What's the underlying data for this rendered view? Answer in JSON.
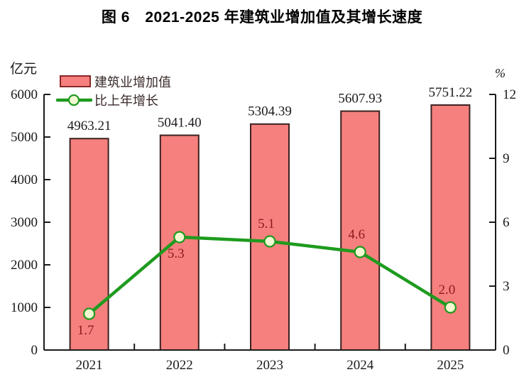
{
  "chart_data": {
    "type": "bar+line",
    "title": "图 6　2021-2025 年建筑业增加值及其增长速度",
    "categories": [
      "2021",
      "2022",
      "2023",
      "2024",
      "2025"
    ],
    "series": [
      {
        "name": "建筑业增加值",
        "type": "bar",
        "axis": "left",
        "unit": "亿元",
        "values": [
          4963.21,
          5041.4,
          5304.39,
          5607.93,
          5751.22
        ],
        "values_text": [
          "4963.21",
          "5041.40",
          "5304.39",
          "5607.93",
          "5751.22"
        ],
        "fill_color": "#F5807E",
        "border_color": "#3B2121",
        "label_color": "#1a1a1a"
      },
      {
        "name": "比上年增长",
        "type": "line",
        "axis": "right",
        "unit": "%",
        "values": [
          1.7,
          5.3,
          5.1,
          4.6,
          2.0
        ],
        "values_text": [
          "1.7",
          "5.3",
          "5.1",
          "4.6",
          "2.0"
        ],
        "label_positions": [
          "below",
          "below",
          "above",
          "above",
          "above"
        ],
        "line_color": "#1E9B1E",
        "marker_fill": "#F4F8D2",
        "label_color": "#8B1C1C"
      }
    ],
    "left_axis": {
      "unit_label": "亿元",
      "min": 0,
      "max": 6000,
      "step": 1000,
      "ticks": [
        "0",
        "1000",
        "2000",
        "3000",
        "4000",
        "5000",
        "6000"
      ]
    },
    "right_axis": {
      "unit_label": "%",
      "min": 0,
      "max": 12,
      "step": 3,
      "ticks": [
        "0",
        "3",
        "6",
        "9",
        "12"
      ]
    },
    "x_axis": {
      "labels": [
        "2021",
        "2022",
        "2023",
        "2024",
        "2025"
      ]
    },
    "legend": {
      "position": "top-left-inside",
      "items": [
        {
          "label": "建筑业增加值",
          "marker": "bar-swatch"
        },
        {
          "label": "比上年增长",
          "marker": "line-with-dot"
        }
      ]
    },
    "grid": false,
    "axis_color": "#1a1a1a",
    "text_color": "#1a1a1a"
  }
}
